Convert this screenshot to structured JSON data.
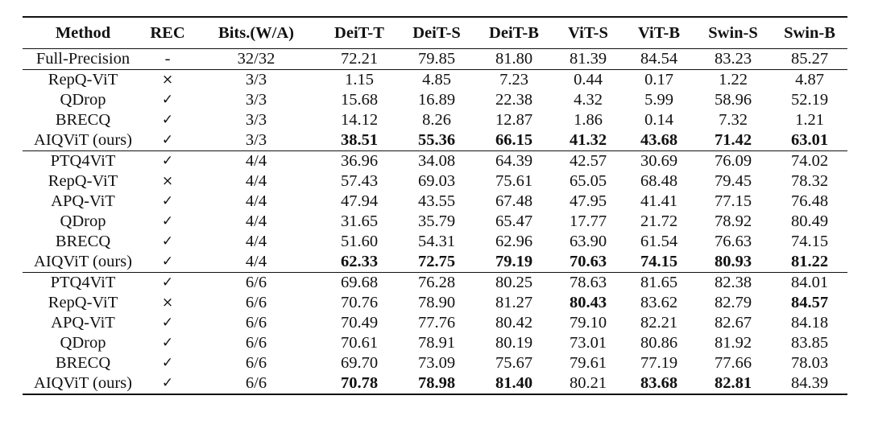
{
  "table": {
    "headers": [
      "Method",
      "REC",
      "Bits.(W/A)",
      "DeiT-T",
      "DeiT-S",
      "DeiT-B",
      "ViT-S",
      "ViT-B",
      "Swin-S",
      "Swin-B"
    ],
    "groups": [
      {
        "rows": [
          {
            "cells": [
              "Full-Precision",
              "-",
              "32/32",
              "72.21",
              "79.85",
              "81.80",
              "81.39",
              "84.54",
              "83.23",
              "85.27"
            ],
            "bold": []
          }
        ]
      },
      {
        "rows": [
          {
            "cells": [
              "RepQ-ViT",
              "×",
              "3/3",
              "1.15",
              "4.85",
              "7.23",
              "0.44",
              "0.17",
              "1.22",
              "4.87"
            ],
            "bold": []
          },
          {
            "cells": [
              "QDrop",
              "✓",
              "3/3",
              "15.68",
              "16.89",
              "22.38",
              "4.32",
              "5.99",
              "58.96",
              "52.19"
            ],
            "bold": []
          },
          {
            "cells": [
              "BRECQ",
              "✓",
              "3/3",
              "14.12",
              "8.26",
              "12.87",
              "1.86",
              "0.14",
              "7.32",
              "1.21"
            ],
            "bold": []
          },
          {
            "cells": [
              "AIQViT (ours)",
              "✓",
              "3/3",
              "38.51",
              "55.36",
              "66.15",
              "41.32",
              "43.68",
              "71.42",
              "63.01"
            ],
            "bold": [
              3,
              4,
              5,
              6,
              7,
              8,
              9
            ]
          }
        ]
      },
      {
        "rows": [
          {
            "cells": [
              "PTQ4ViT",
              "✓",
              "4/4",
              "36.96",
              "34.08",
              "64.39",
              "42.57",
              "30.69",
              "76.09",
              "74.02"
            ],
            "bold": []
          },
          {
            "cells": [
              "RepQ-ViT",
              "×",
              "4/4",
              "57.43",
              "69.03",
              "75.61",
              "65.05",
              "68.48",
              "79.45",
              "78.32"
            ],
            "bold": []
          },
          {
            "cells": [
              "APQ-ViT",
              "✓",
              "4/4",
              "47.94",
              "43.55",
              "67.48",
              "47.95",
              "41.41",
              "77.15",
              "76.48"
            ],
            "bold": []
          },
          {
            "cells": [
              "QDrop",
              "✓",
              "4/4",
              "31.65",
              "35.79",
              "65.47",
              "17.77",
              "21.72",
              "78.92",
              "80.49"
            ],
            "bold": []
          },
          {
            "cells": [
              "BRECQ",
              "✓",
              "4/4",
              "51.60",
              "54.31",
              "62.96",
              "63.90",
              "61.54",
              "76.63",
              "74.15"
            ],
            "bold": []
          },
          {
            "cells": [
              "AIQViT (ours)",
              "✓",
              "4/4",
              "62.33",
              "72.75",
              "79.19",
              "70.63",
              "74.15",
              "80.93",
              "81.22"
            ],
            "bold": [
              3,
              4,
              5,
              6,
              7,
              8,
              9
            ]
          }
        ]
      },
      {
        "rows": [
          {
            "cells": [
              "PTQ4ViT",
              "✓",
              "6/6",
              "69.68",
              "76.28",
              "80.25",
              "78.63",
              "81.65",
              "82.38",
              "84.01"
            ],
            "bold": []
          },
          {
            "cells": [
              "RepQ-ViT",
              "×",
              "6/6",
              "70.76",
              "78.90",
              "81.27",
              "80.43",
              "83.62",
              "82.79",
              "84.57"
            ],
            "bold": [
              6,
              9
            ]
          },
          {
            "cells": [
              "APQ-ViT",
              "✓",
              "6/6",
              "70.49",
              "77.76",
              "80.42",
              "79.10",
              "82.21",
              "82.67",
              "84.18"
            ],
            "bold": []
          },
          {
            "cells": [
              "QDrop",
              "✓",
              "6/6",
              "70.61",
              "78.91",
              "80.19",
              "73.01",
              "80.86",
              "81.92",
              "83.85"
            ],
            "bold": []
          },
          {
            "cells": [
              "BRECQ",
              "✓",
              "6/6",
              "69.70",
              "73.09",
              "75.67",
              "79.61",
              "77.19",
              "77.66",
              "78.03"
            ],
            "bold": []
          },
          {
            "cells": [
              "AIQViT (ours)",
              "✓",
              "6/6",
              "70.78",
              "78.98",
              "81.40",
              "80.21",
              "83.68",
              "82.81",
              "84.39"
            ],
            "bold": [
              3,
              4,
              5,
              7,
              8
            ]
          }
        ]
      }
    ]
  }
}
